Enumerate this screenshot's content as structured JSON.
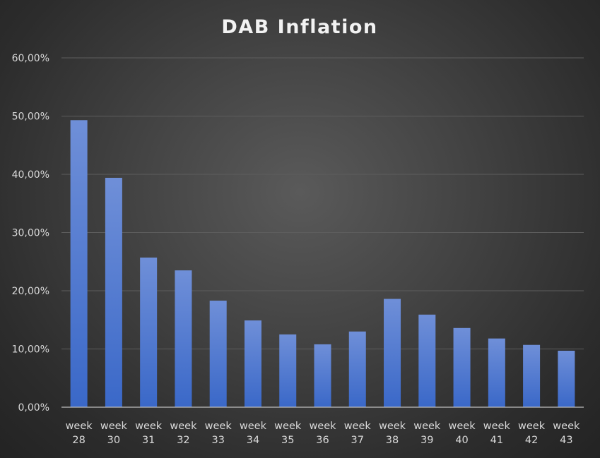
{
  "chart_data": {
    "type": "bar",
    "title": "DAB Inflation",
    "xlabel": "",
    "ylabel": "",
    "categories": [
      "week 28",
      "week 30",
      "week 31",
      "week 32",
      "week 33",
      "week 34",
      "week 35",
      "week 36",
      "week 37",
      "week 38",
      "week 39",
      "week 40",
      "week 41",
      "week 42",
      "week 43"
    ],
    "category_lines": [
      [
        "week",
        "28"
      ],
      [
        "week",
        "30"
      ],
      [
        "week",
        "31"
      ],
      [
        "week",
        "32"
      ],
      [
        "week",
        "33"
      ],
      [
        "week",
        "34"
      ],
      [
        "week",
        "35"
      ],
      [
        "week",
        "36"
      ],
      [
        "week",
        "37"
      ],
      [
        "week",
        "38"
      ],
      [
        "week",
        "39"
      ],
      [
        "week",
        "40"
      ],
      [
        "week",
        "41"
      ],
      [
        "week",
        "42"
      ],
      [
        "week",
        "43"
      ]
    ],
    "values": [
      49.3,
      39.4,
      25.7,
      23.5,
      18.3,
      14.9,
      12.5,
      10.8,
      13.0,
      18.6,
      15.9,
      13.6,
      11.8,
      10.7,
      9.7
    ],
    "ylim": [
      0,
      60
    ],
    "yticks": [
      0,
      10,
      20,
      30,
      40,
      50,
      60
    ],
    "ytick_labels": [
      "0,00%",
      "10,00%",
      "20,00%",
      "30,00%",
      "40,00%",
      "50,00%",
      "60,00%"
    ],
    "grid": true,
    "legend": "none",
    "colors": {
      "bar_top": "#6f8fd8",
      "bar_bottom": "#3a68c8",
      "gridline": "#5d5d5d",
      "axis": "#bfbfbf",
      "text": "#d9d9d9",
      "title": "#f2f2f2"
    }
  }
}
